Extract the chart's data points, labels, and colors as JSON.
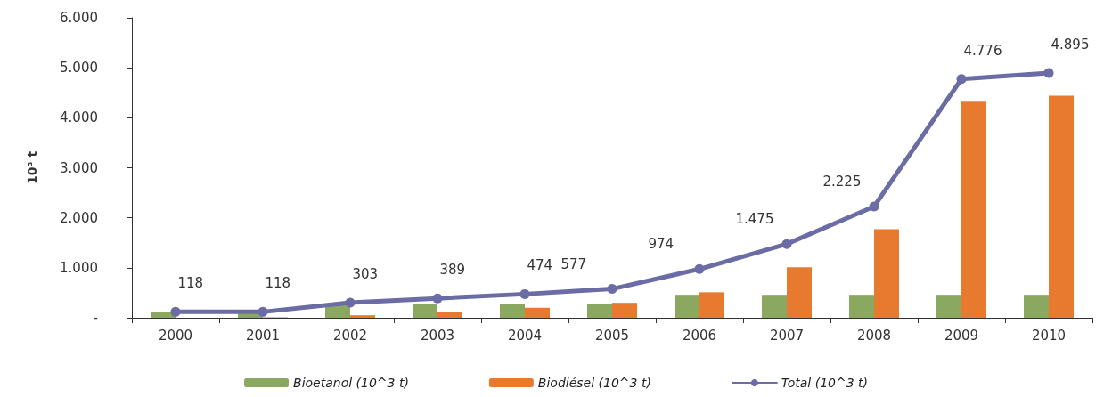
{
  "chart_data": {
    "type": "bar",
    "ylabel": "10³ t",
    "categories": [
      "2000",
      "2001",
      "2002",
      "2003",
      "2004",
      "2005",
      "2006",
      "2007",
      "2008",
      "2009",
      "2010"
    ],
    "series": [
      {
        "name": "Bioetanol (10^3 t)",
        "color": "#8aa860",
        "values": [
          120,
          100,
          250,
          270,
          270,
          270,
          460,
          460,
          460,
          460,
          460
        ]
      },
      {
        "name": "Biodiésel (10^3 t)",
        "color": "#e87a30",
        "values": [
          0,
          10,
          50,
          120,
          200,
          300,
          510,
          1010,
          1770,
          4320,
          4440
        ]
      },
      {
        "name": "Total (10^3 t)",
        "type": "line",
        "color": "#6b6ba5",
        "marker": "circle",
        "values": [
          118,
          118,
          303,
          389,
          474,
          577,
          974,
          1475,
          2225,
          4776,
          4895
        ],
        "value_labels": [
          "118",
          "118",
          "303",
          "389",
          "474",
          "577",
          "974",
          "1.475",
          "2.225",
          "4.776",
          "4.895"
        ]
      }
    ],
    "ylim": [
      0,
      6000
    ],
    "yticks": [
      {
        "value": 0,
        "label": "-"
      },
      {
        "value": 1000,
        "label": "1.000"
      },
      {
        "value": 2000,
        "label": "2.000"
      },
      {
        "value": 3000,
        "label": "3.000"
      },
      {
        "value": 4000,
        "label": "4.000"
      },
      {
        "value": 5000,
        "label": "5.000"
      },
      {
        "value": 6000,
        "label": "6.000"
      }
    ],
    "grid": false,
    "legend": "bottom"
  }
}
